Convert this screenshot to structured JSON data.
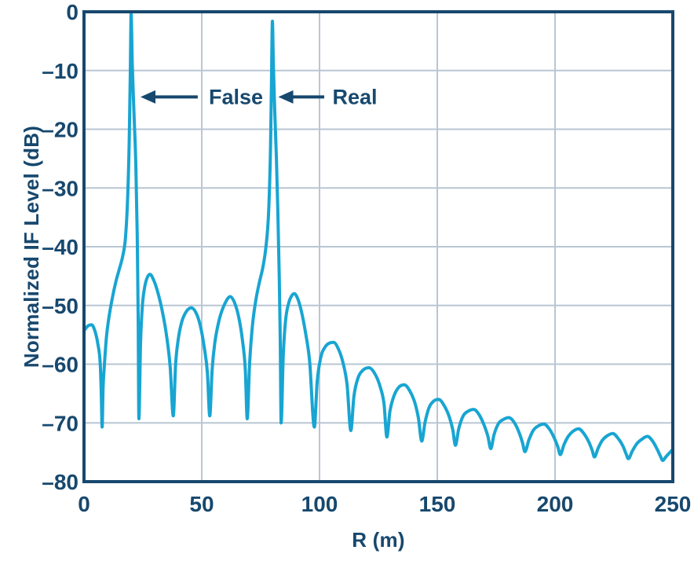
{
  "chart": {
    "xlabel": "R (m)",
    "ylabel": "Normalized IF Level (dB)",
    "xlim": [
      0,
      250
    ],
    "ylim": [
      -80,
      0
    ],
    "xticks": [
      0,
      50,
      100,
      150,
      200,
      250
    ],
    "xtick_labels": [
      "0",
      "50",
      "100",
      "150",
      "200",
      "250"
    ],
    "yticks": [
      0,
      -10,
      -20,
      -30,
      -40,
      -50,
      -60,
      -70,
      -80
    ],
    "ytick_labels": [
      "0",
      "–10",
      "–20",
      "–30",
      "–40",
      "–50",
      "–60",
      "–70",
      "–80"
    ],
    "grid": true,
    "colors": {
      "line": "#18A5D2",
      "frame": "#17486E",
      "text": "#17486E",
      "grid": "#B9C6D3",
      "background": "#FFFFFF"
    }
  },
  "chart_data": {
    "type": "line",
    "title": "",
    "xlabel": "R (m)",
    "ylabel": "Normalized IF Level (dB)",
    "xlim": [
      0,
      250
    ],
    "ylim": [
      -80,
      0
    ],
    "legend": "none",
    "peaks": [
      {
        "label": "False",
        "x": 20,
        "db": -0.3
      },
      {
        "label": "Real",
        "x": 80,
        "db": -1.6
      }
    ],
    "annotations": [
      {
        "label": "False",
        "arrow_tip_x": 24,
        "arrow_tail_x": 48.3,
        "y_db": -14.5,
        "label_x": 64.5
      },
      {
        "label": "Real",
        "arrow_tip_x": 82.5,
        "arrow_tail_x": 102,
        "y_db": -14.5,
        "label_x": 115
      }
    ],
    "series": [
      {
        "name": "Normalized IF level",
        "color": "#18A5D2",
        "points": [
          [
            0,
            -54.3
          ],
          [
            1.6,
            -53.5
          ],
          [
            3.2,
            -53.3
          ],
          [
            4.6,
            -54.3
          ],
          [
            5.9,
            -56.6
          ],
          [
            6.9,
            -60
          ],
          [
            7.3,
            -64.5
          ],
          [
            7.7,
            -70.7
          ],
          [
            8.1,
            -64
          ],
          [
            8.6,
            -60.5
          ],
          [
            9.5,
            -55.5
          ],
          [
            10.6,
            -52
          ],
          [
            12,
            -48.8
          ],
          [
            13.5,
            -46
          ],
          [
            15,
            -43.8
          ],
          [
            16.5,
            -41.5
          ],
          [
            17.6,
            -38.5
          ],
          [
            18.5,
            -32
          ],
          [
            19.2,
            -22
          ],
          [
            19.65,
            -11
          ],
          [
            20,
            -0.3
          ],
          [
            20.5,
            -9
          ],
          [
            21.2,
            -17
          ],
          [
            22,
            -26
          ],
          [
            22.6,
            -38
          ],
          [
            23,
            -52
          ],
          [
            23.3,
            -69.3
          ],
          [
            24,
            -56.5
          ],
          [
            24.8,
            -50
          ],
          [
            25.8,
            -46.8
          ],
          [
            26.9,
            -45.2
          ],
          [
            28,
            -44.7
          ],
          [
            29.5,
            -45.6
          ],
          [
            31,
            -47.3
          ],
          [
            33,
            -50.5
          ],
          [
            35,
            -55
          ],
          [
            36.6,
            -60.5
          ],
          [
            37.9,
            -68.8
          ],
          [
            38.9,
            -60
          ],
          [
            40,
            -55.8
          ],
          [
            41.5,
            -52.8
          ],
          [
            43.5,
            -51
          ],
          [
            45.6,
            -50.4
          ],
          [
            47.5,
            -51.2
          ],
          [
            49.3,
            -53.3
          ],
          [
            51,
            -57
          ],
          [
            52.4,
            -61.5
          ],
          [
            53.4,
            -68.8
          ],
          [
            54.4,
            -61
          ],
          [
            55.5,
            -56.5
          ],
          [
            57.5,
            -52.3
          ],
          [
            59.8,
            -49.7
          ],
          [
            62.1,
            -48.5
          ],
          [
            64,
            -49.6
          ],
          [
            65.8,
            -52.2
          ],
          [
            67.3,
            -56
          ],
          [
            68.5,
            -61
          ],
          [
            69.3,
            -69.3
          ],
          [
            70.3,
            -60
          ],
          [
            71.5,
            -53.5
          ],
          [
            73,
            -49
          ],
          [
            74.5,
            -46
          ],
          [
            76,
            -43.4
          ],
          [
            77.2,
            -40.2
          ],
          [
            78.4,
            -34
          ],
          [
            79.2,
            -23
          ],
          [
            79.6,
            -12
          ],
          [
            80,
            -1.6
          ],
          [
            80.4,
            -9
          ],
          [
            81,
            -17
          ],
          [
            81.7,
            -25
          ],
          [
            82.3,
            -34
          ],
          [
            82.9,
            -45
          ],
          [
            83.3,
            -55
          ],
          [
            83.7,
            -70
          ],
          [
            84.6,
            -58.5
          ],
          [
            85.6,
            -52.5
          ],
          [
            86.9,
            -49.6
          ],
          [
            88.1,
            -48.4
          ],
          [
            89.3,
            -48
          ],
          [
            90.8,
            -48.9
          ],
          [
            92.3,
            -51
          ],
          [
            94,
            -54.5
          ],
          [
            95.8,
            -59.5
          ],
          [
            97.8,
            -70.7
          ],
          [
            99,
            -63
          ],
          [
            100.5,
            -58.9
          ],
          [
            102.5,
            -57
          ],
          [
            104.3,
            -56.4
          ],
          [
            106,
            -56.3
          ],
          [
            108,
            -57.4
          ],
          [
            110,
            -59.8
          ],
          [
            111.7,
            -63.5
          ],
          [
            113.3,
            -71.3
          ],
          [
            114.6,
            -65.5
          ],
          [
            116.3,
            -62.4
          ],
          [
            118.5,
            -61
          ],
          [
            121,
            -60.6
          ],
          [
            123.6,
            -61.7
          ],
          [
            125.8,
            -63.9
          ],
          [
            127.4,
            -66.8
          ],
          [
            128.6,
            -72.4
          ],
          [
            129.9,
            -68
          ],
          [
            131.6,
            -65.4
          ],
          [
            133.7,
            -63.9
          ],
          [
            136,
            -63.5
          ],
          [
            138.4,
            -64.6
          ],
          [
            140.5,
            -66.6
          ],
          [
            142,
            -69.2
          ],
          [
            143.4,
            -73.1
          ],
          [
            144.8,
            -69.9
          ],
          [
            146.5,
            -67.4
          ],
          [
            148.4,
            -66.3
          ],
          [
            150.6,
            -66
          ],
          [
            153,
            -67.1
          ],
          [
            155.2,
            -69.1
          ],
          [
            156.6,
            -71.2
          ],
          [
            157.7,
            -73.8
          ],
          [
            159.1,
            -71
          ],
          [
            161,
            -68.8
          ],
          [
            163.1,
            -68
          ],
          [
            165.5,
            -67.7
          ],
          [
            167.9,
            -68.7
          ],
          [
            170,
            -70.5
          ],
          [
            171.5,
            -72.3
          ],
          [
            172.7,
            -74.4
          ],
          [
            174.1,
            -72
          ],
          [
            176,
            -70.1
          ],
          [
            178.1,
            -69.4
          ],
          [
            180.4,
            -69.1
          ],
          [
            182.8,
            -70
          ],
          [
            184.8,
            -71.7
          ],
          [
            186.2,
            -73.4
          ],
          [
            187.2,
            -74.9
          ],
          [
            188.9,
            -72.9
          ],
          [
            190.7,
            -71.3
          ],
          [
            192.9,
            -70.5
          ],
          [
            195.3,
            -70.2
          ],
          [
            197.7,
            -71.1
          ],
          [
            199.7,
            -72.6
          ],
          [
            201.2,
            -74.1
          ],
          [
            202.2,
            -75.4
          ],
          [
            203.8,
            -73.7
          ],
          [
            205.6,
            -72.3
          ],
          [
            207.7,
            -71.4
          ],
          [
            210,
            -71
          ],
          [
            212.4,
            -71.9
          ],
          [
            214.4,
            -73.3
          ],
          [
            215.8,
            -74.7
          ],
          [
            216.7,
            -75.8
          ],
          [
            218.3,
            -74.3
          ],
          [
            220,
            -73
          ],
          [
            222.1,
            -72.2
          ],
          [
            224.5,
            -71.8
          ],
          [
            226.9,
            -72.7
          ],
          [
            228.9,
            -74
          ],
          [
            230.2,
            -75.3
          ],
          [
            231.1,
            -76.1
          ],
          [
            232.8,
            -74.8
          ],
          [
            234.6,
            -73.6
          ],
          [
            236.8,
            -72.8
          ],
          [
            239.2,
            -72.3
          ],
          [
            241.6,
            -73.2
          ],
          [
            243.5,
            -74.6
          ],
          [
            244.9,
            -75.8
          ],
          [
            245.7,
            -76.4
          ],
          [
            247.2,
            -75.7
          ],
          [
            250,
            -74.5
          ]
        ]
      }
    ]
  }
}
